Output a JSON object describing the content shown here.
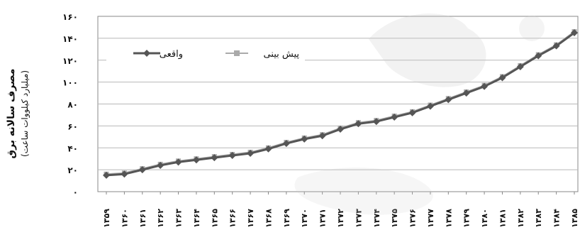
{
  "chart_data": {
    "type": "line",
    "title": "",
    "ylabel": "مصرف سالانه برق",
    "ylabel_unit": "(میلیارد کیلووات ساعت)",
    "ylim": [
      0,
      160
    ],
    "yticks": [
      "۰",
      "۲۰",
      "۴۰",
      "۶۰",
      "۸۰",
      "۱۰۰",
      "۱۲۰",
      "۱۴۰",
      "۱۶۰"
    ],
    "ytick_values": [
      0,
      20,
      40,
      60,
      80,
      100,
      120,
      140,
      160
    ],
    "grid": "horizontal",
    "legend_position": "top-left",
    "categories": [
      "۱۳۵۹",
      "۱۳۶۰",
      "۱۳۶۱",
      "۱۳۶۲",
      "۱۳۶۳",
      "۱۳۶۴",
      "۱۳۶۵",
      "۱۳۶۶",
      "۱۳۶۷",
      "۱۳۶۸",
      "۱۳۶۹",
      "۱۳۷۰",
      "۱۳۷۱",
      "۱۳۷۲",
      "۱۳۷۳",
      "۱۳۷۴",
      "۱۳۷۵",
      "۱۳۷۶",
      "۱۳۷۷",
      "۱۳۷۸",
      "۱۳۷۹",
      "۱۳۸۰",
      "۱۳۸۱",
      "۱۳۸۲",
      "۱۳۸۳",
      "۱۳۸۴",
      "۱۳۸۵"
    ],
    "series": [
      {
        "name": "واقعی",
        "color": "#555555",
        "marker": "diamond",
        "values": [
          15,
          16,
          20,
          24,
          27,
          29,
          31,
          33,
          35,
          39,
          44,
          48,
          51,
          57,
          62,
          64,
          68,
          72,
          78,
          84,
          90,
          96,
          104,
          114,
          124,
          133,
          145
        ]
      },
      {
        "name": "پیش بینی",
        "color": "#aaaaaa",
        "marker": "square",
        "values": [
          16,
          17,
          21,
          25,
          28,
          30,
          32,
          34,
          36,
          40,
          45,
          49,
          52,
          58,
          63,
          65,
          69,
          73,
          79,
          85,
          91,
          97,
          105,
          115,
          125,
          134,
          146
        ]
      }
    ]
  }
}
